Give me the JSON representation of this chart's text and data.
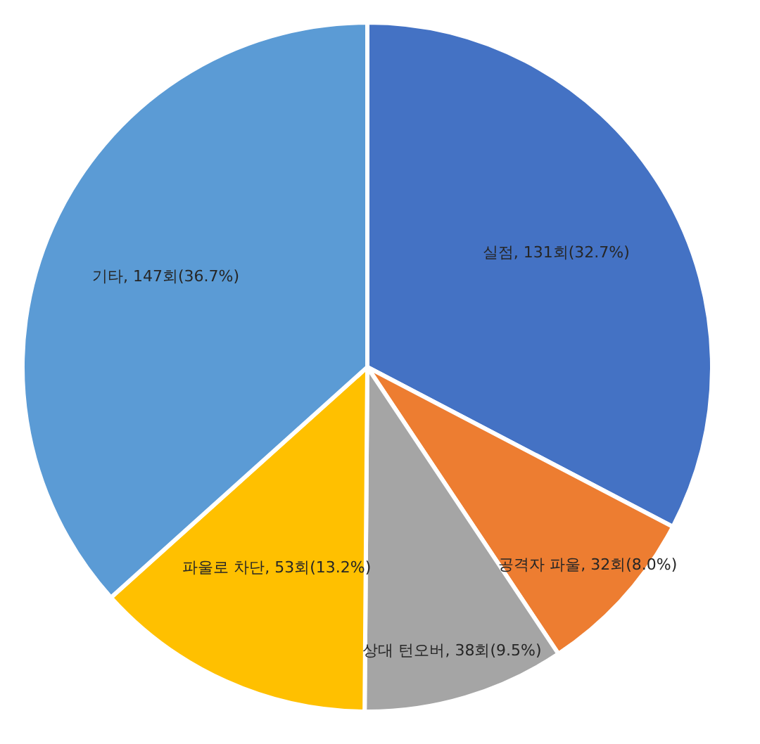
{
  "chart_data": {
    "type": "pie",
    "categories": [
      "실점",
      "공격자 파울",
      "상대 턴오버",
      "파울로 차단",
      "기타"
    ],
    "values": [
      131,
      32,
      38,
      53,
      147
    ],
    "colors": [
      "#4472c4",
      "#ed7d31",
      "#a5a5a5",
      "#ffc000",
      "#5b9bd5"
    ],
    "value_labels": [
      "131회(32.7%)",
      "32회(8.0%)",
      "38회(9.5%)",
      "53회(13.2%)",
      "147회(36.7%)"
    ],
    "legend": false
  }
}
